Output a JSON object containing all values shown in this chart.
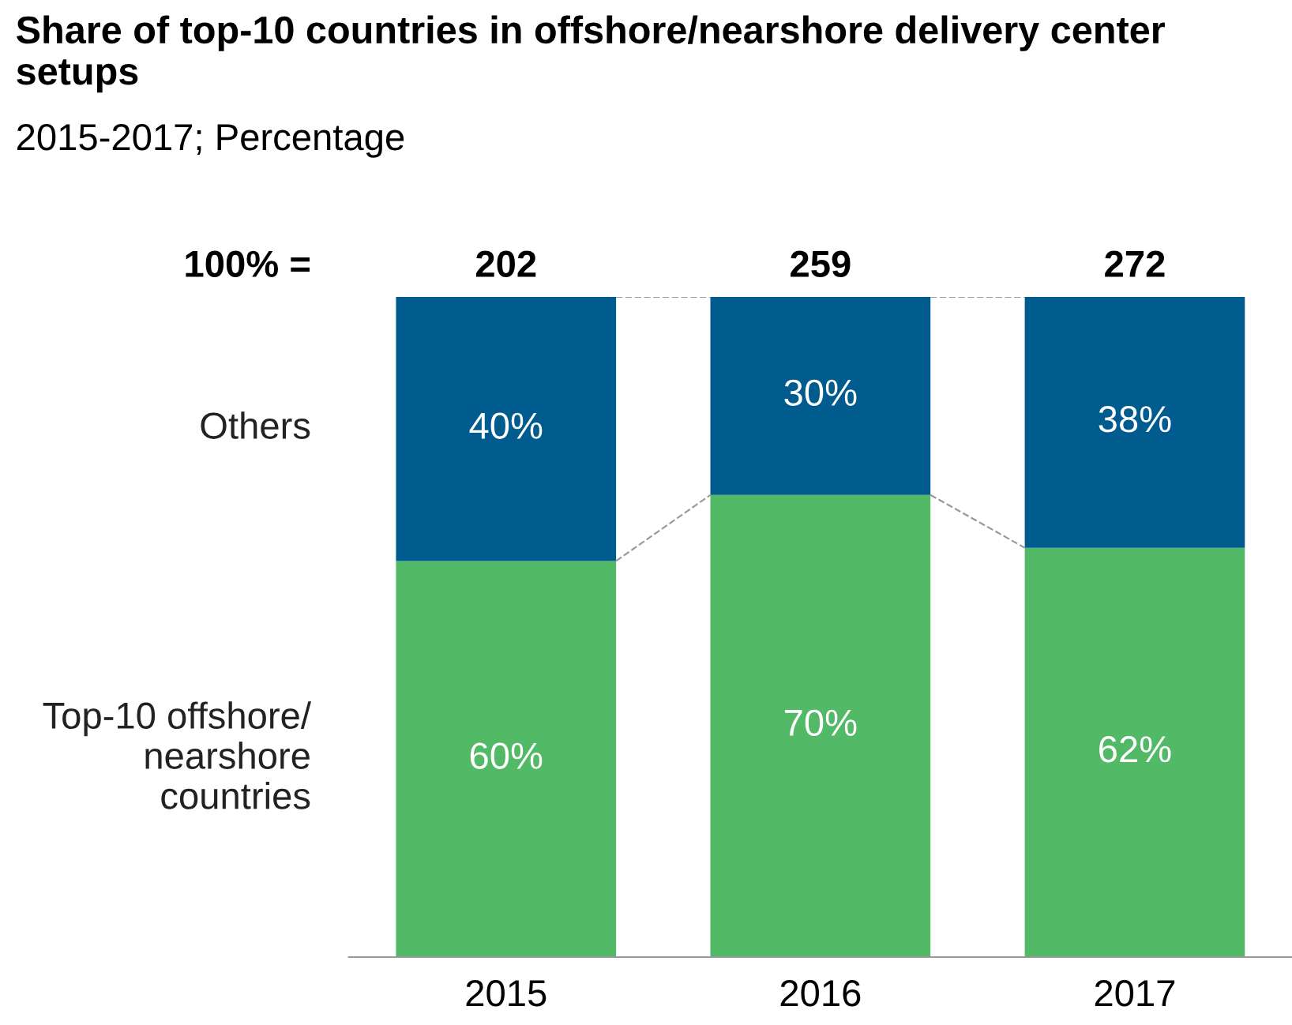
{
  "chart_data": {
    "type": "bar",
    "stacked": true,
    "title": "Share of top-10 countries in offshore/nearshore delivery center setups",
    "subtitle": "2015-2017; Percentage",
    "categories": [
      "2015",
      "2016",
      "2017"
    ],
    "series": [
      {
        "name": "Top-10 offshore/\nnearshore\ncountries",
        "color": "#52b966",
        "values": [
          60,
          70,
          62
        ],
        "value_labels": [
          "60%",
          "70%",
          "62%"
        ]
      },
      {
        "name": "Others",
        "color": "#005b8e",
        "values": [
          40,
          30,
          38
        ],
        "value_labels": [
          "40%",
          "30%",
          "38%"
        ]
      }
    ],
    "annotations": [
      "100% =",
      "202",
      "259",
      "272"
    ],
    "legend": false,
    "grid": false
  }
}
